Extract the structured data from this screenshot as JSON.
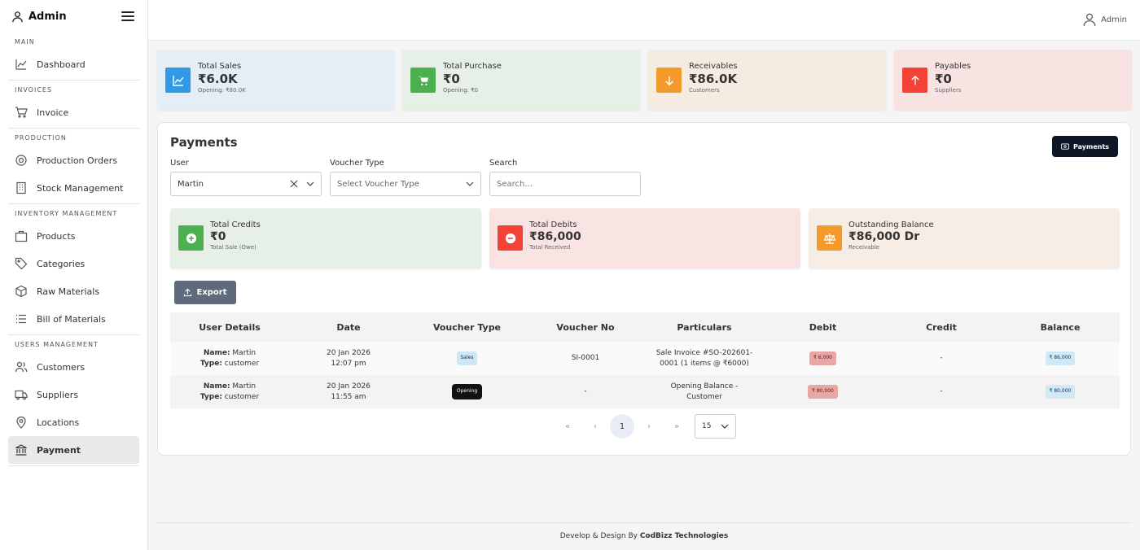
{
  "sidebar": {
    "brand": "Admin",
    "sections": {
      "main": "MAIN",
      "invoices": "INVOICES",
      "production": "PRODUCTION",
      "inventory": "INVENTORY MANAGEMENT",
      "users": "USERS MANAGEMENT"
    },
    "items": {
      "dashboard": "Dashboard",
      "invoice": "Invoice",
      "production_orders": "Production Orders",
      "stock_management": "Stock Management",
      "products": "Products",
      "categories": "Categories",
      "raw_materials": "Raw Materials",
      "bill_of_materials": "Bill of Materials",
      "customers": "Customers",
      "suppliers": "Suppliers",
      "locations": "Locations",
      "payment": "Payment"
    }
  },
  "topbar": {
    "user": "Admin"
  },
  "stats": [
    {
      "label": "Total Sales",
      "value": "₹6.0K",
      "sub": "Opening: ₹80.0K",
      "color": "#2f9be8",
      "bg": "#e3eef7"
    },
    {
      "label": "Total Purchase",
      "value": "₹0",
      "sub": "Opening: ₹0",
      "color": "#4caf50",
      "bg": "#e6f0e7"
    },
    {
      "label": "Receivables",
      "value": "₹86.0K",
      "sub": "Customers",
      "color": "#f39a2b",
      "bg": "#f6ebe1"
    },
    {
      "label": "Payables",
      "value": "₹0",
      "sub": "Suppliers",
      "color": "#f44336",
      "bg": "#f8e3e3"
    }
  ],
  "payments": {
    "title": "Payments",
    "button": "Payments",
    "filters": {
      "user_label": "User",
      "user_value": "Martin",
      "voucher_label": "Voucher Type",
      "voucher_placeholder": "Select Voucher Type",
      "search_label": "Search",
      "search_placeholder": "Search..."
    },
    "summary": [
      {
        "label": "Total Credits",
        "value": "₹0",
        "sub": "Total Sale (Owe)",
        "color": "#4caf50",
        "bg": "#e6f0e7"
      },
      {
        "label": "Total Debits",
        "value": "₹86,000",
        "sub": "Total Received",
        "color": "#f44336",
        "bg": "#fae4e3"
      },
      {
        "label": "Outstanding Balance",
        "value": "₹86,000 Dr",
        "sub": "Receivable",
        "color": "#f39a2b",
        "bg": "#f7ede4"
      }
    ],
    "export": "Export",
    "table": {
      "headers": [
        "User Details",
        "Date",
        "Voucher Type",
        "Voucher No",
        "Particulars",
        "Debit",
        "Credit",
        "Balance"
      ],
      "name_key": "Name:",
      "type_key": "Type:",
      "rows": [
        {
          "name": "Martin",
          "type": "customer",
          "date": "20 Jan 2026",
          "time": "12:07 pm",
          "voucher_type": "Sales",
          "voucher_no": "SI-0001",
          "particulars_1": "Sale Invoice #SO-202601-",
          "particulars_2": "0001 (1 items @ ₹6000)",
          "debit": "₹ 6,000",
          "credit": "-",
          "balance": "₹ 86,000"
        },
        {
          "name": "Martin",
          "type": "customer",
          "date": "20 Jan 2026",
          "time": "11:55 am",
          "voucher_type": "Opening",
          "voucher_no": "-",
          "particulars_1": "Opening Balance -",
          "particulars_2": "Customer",
          "debit": "₹ 80,000",
          "credit": "-",
          "balance": "₹ 80,000"
        }
      ]
    },
    "pagination": {
      "first": "«",
      "prev": "‹",
      "current": "1",
      "next": "›",
      "last": "»",
      "page_size": "15"
    }
  },
  "footer": {
    "prefix": "Develop & Design By ",
    "company": "CodBizz Technologies"
  }
}
